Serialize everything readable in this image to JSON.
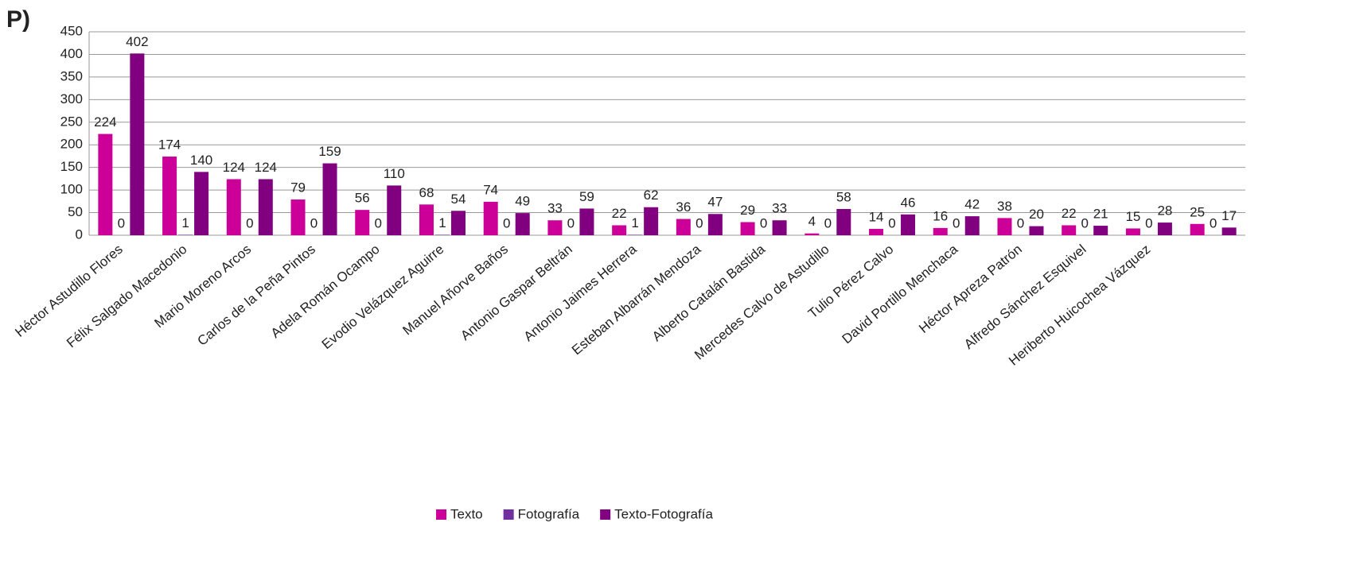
{
  "chart_data": {
    "type": "bar",
    "title": "P)",
    "categories": [
      "Héctor Astudillo Flores",
      "Félix Salgado Macedonio",
      "Mario Moreno Arcos",
      "Carlos de la Peña Pintos",
      "Adela Román Ocampo",
      "Evodio Velázquez Aguirre",
      "Manuel Añorve Baños",
      "Antonio Gaspar Beltrán",
      "Antonio Jaimes Herrera",
      "Esteban Albarrán Mendoza",
      "Alberto Catalán Bastida",
      "Mercedes Calvo de Astudillo",
      "Tulio Pérez Calvo",
      "David Portillo Menchaca",
      "Héctor Apreza Patrón",
      "Alfredo Sánchez Esquivel",
      "Heriberto Huicochea Vázquez",
      null
    ],
    "series": [
      {
        "name": "Texto",
        "color": "#cc0099",
        "values": [
          224,
          174,
          124,
          79,
          56,
          68,
          74,
          33,
          22,
          36,
          29,
          4,
          14,
          16,
          38,
          22,
          15,
          25
        ]
      },
      {
        "name": "Fotografía",
        "color": "#7030a0",
        "values": [
          0,
          1,
          0,
          0,
          0,
          1,
          0,
          0,
          1,
          0,
          0,
          0,
          0,
          0,
          0,
          0,
          0,
          0
        ]
      },
      {
        "name": "Texto-Fotografía",
        "color": "#800080",
        "values": [
          402,
          140,
          124,
          159,
          110,
          54,
          49,
          59,
          62,
          47,
          33,
          58,
          46,
          42,
          20,
          21,
          28,
          17
        ]
      }
    ],
    "ylim": [
      0,
      450
    ],
    "yticks": [
      0,
      50,
      100,
      150,
      200,
      250,
      300,
      350,
      400,
      450
    ],
    "grid": true,
    "legend": "bottom"
  }
}
